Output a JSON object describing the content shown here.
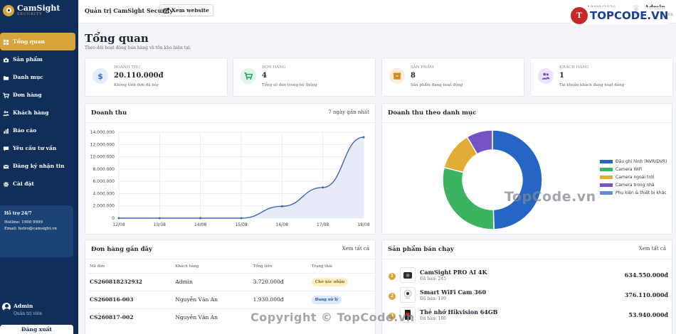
{
  "brand": {
    "name": "CamSight",
    "tag": "SECURITY"
  },
  "sidebar": {
    "items": [
      {
        "label": "Tổng quan",
        "icon": "dashboard-icon"
      },
      {
        "label": "Sản phẩm",
        "icon": "camera-icon"
      },
      {
        "label": "Danh mục",
        "icon": "folder-icon"
      },
      {
        "label": "Đơn hàng",
        "icon": "cart-icon"
      },
      {
        "label": "Khách hàng",
        "icon": "users-icon"
      },
      {
        "label": "Báo cáo",
        "icon": "report-icon"
      },
      {
        "label": "Yêu cầu tư vấn",
        "icon": "chat-icon"
      },
      {
        "label": "Đăng ký nhận tin",
        "icon": "mail-icon"
      },
      {
        "label": "Cài đặt",
        "icon": "gear-icon"
      }
    ],
    "support": {
      "title": "Hỗ trợ 24/7",
      "hotline": "Hotline: 1900 9999",
      "email": "Email: hotro@camsight.vn"
    },
    "user": {
      "name": "Admin",
      "role": "Quản trị viên"
    },
    "logout": "Đăng xuất"
  },
  "topbar": {
    "title": "Quản trị CamSight Security",
    "view_site": "Xem website",
    "date": "18/08/2026",
    "admin_name": "Admin",
    "admin_role": "Quản trị viên",
    "watermark_logo": "TOPCODE.VN"
  },
  "page": {
    "title": "Tổng quan",
    "subtitle": "Theo dõi hoạt động bán hàng và tồn kho hiện tại."
  },
  "stats": [
    {
      "label": "DOANH THU",
      "value": "20.110.000đ",
      "note": "Không tính đơn đã hủy",
      "icon": "dollar-icon",
      "color": "#2f6fd6",
      "bg": "#e3ecfb"
    },
    {
      "label": "ĐƠN HÀNG",
      "value": "4",
      "note": "Tổng số đơn trong hệ thống",
      "icon": "cart-icon",
      "color": "#2e9e5b",
      "bg": "#e0f4e8"
    },
    {
      "label": "SẢN PHẨM",
      "value": "8",
      "note": "Sản phẩm đang hoạt động",
      "icon": "box-icon",
      "color": "#d28a1c",
      "bg": "#fbeed8"
    },
    {
      "label": "KHÁCH HÀNG",
      "value": "1",
      "note": "Tài khoản khách đang hoạt động",
      "icon": "users-icon",
      "color": "#7a4cc4",
      "bg": "#ece3fa"
    }
  ],
  "revenue": {
    "title": "Doanh thu",
    "range": "7 ngày gần nhất"
  },
  "category": {
    "title": "Doanh thu theo danh mục"
  },
  "chart_data": [
    {
      "type": "area",
      "title": "Doanh thu",
      "x": [
        "12/08",
        "13/08",
        "14/08",
        "15/08",
        "16/08",
        "17/08",
        "18/08"
      ],
      "y_ticks": [
        "0",
        "2.000.000",
        "4.000.000",
        "6.000.000",
        "8.000.000",
        "10.000.000",
        "12.000.000",
        "14.000.000"
      ],
      "ylim": [
        0,
        14000000
      ],
      "values": [
        0,
        0,
        0,
        0,
        1930000,
        5000000,
        13180000
      ],
      "color": "#3a68b5",
      "grid": true
    },
    {
      "type": "pie",
      "title": "Doanh thu theo danh mục",
      "labels": [
        "Đầu ghi hình (NVR/DVR)",
        "Camera WiFi",
        "Camera ngoài trời",
        "Camera trong nhà",
        "Phụ kiện & thiết bị khác"
      ],
      "values": [
        0.495,
        0.295,
        0.125,
        0.085,
        0.0
      ],
      "colors": [
        "#2566c4",
        "#3cb35f",
        "#e2ad36",
        "#7453c2",
        "#5b8ed6"
      ],
      "legend": "right"
    }
  ],
  "orders": {
    "title": "Đơn hàng gần đây",
    "link": "Xem tất cả",
    "columns": [
      "Mã đơn",
      "Khách hàng",
      "Tổng tiền",
      "Trạng thái"
    ],
    "rows": [
      {
        "code": "CS260818232932",
        "customer": "Admin",
        "total": "3.720.000đ",
        "status": "Chờ xác nhận",
        "kind": "wait"
      },
      {
        "code": "CS260816-003",
        "customer": "Nguyễn Văn An",
        "total": "1.930.000đ",
        "status": "Đang xử lý",
        "kind": "proc"
      },
      {
        "code": "CS260817-002",
        "customer": "Nguyễn Văn An",
        "total": "",
        "status": "",
        "kind": "proc"
      }
    ]
  },
  "products": {
    "title": "Sản phẩm bán chạy",
    "link": "Xem tất cả",
    "items": [
      {
        "rank": "1",
        "name": "CamSight PRO AI 4K",
        "sold": "Đã bán: 245",
        "revenue": "634.550.000đ"
      },
      {
        "rank": "2",
        "name": "Smart WiFi Cam 360",
        "sold": "Đã bán: 199",
        "revenue": "376.110.000đ"
      },
      {
        "rank": "3",
        "name": "Thẻ nhớ Hikvision 64GB",
        "sold": "Đã bán: 186",
        "revenue": "53.940.000đ"
      }
    ]
  },
  "watermarks": {
    "center": "TopCode.vn",
    "bottom": "Copyright © TopCode.vn"
  }
}
